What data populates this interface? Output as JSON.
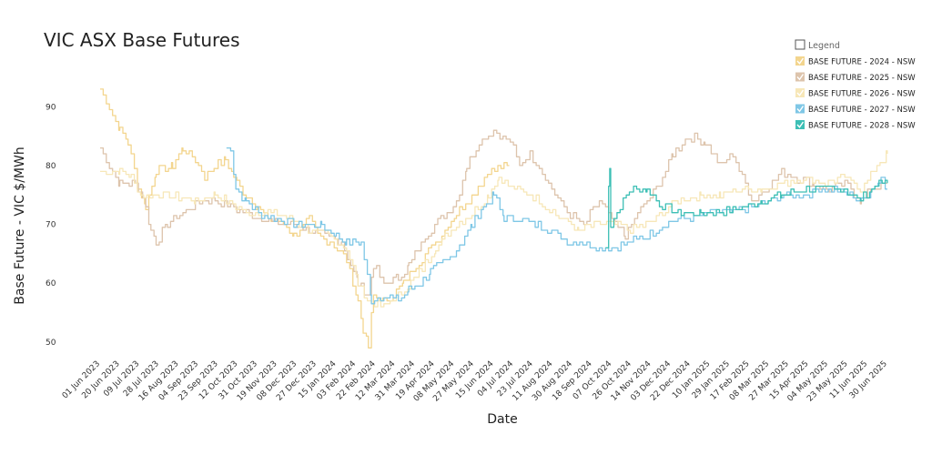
{
  "chart_data": {
    "type": "line",
    "title": "VIC ASX Base Futures",
    "xlabel": "Date",
    "ylabel": "Base Future - VIC $/MWh",
    "ylim": [
      47.5,
      95
    ],
    "yticks": [
      50,
      60,
      70,
      80,
      90
    ],
    "x_start": "2023-06-01",
    "x_end": "2025-07-01",
    "categories": [
      "01 Jun 2023",
      "20 Jun 2023",
      "09 Jul 2023",
      "28 Jul 2023",
      "16 Aug 2023",
      "04 Sep 2023",
      "23 Sep 2023",
      "12 Oct 2023",
      "31 Oct 2023",
      "19 Nov 2023",
      "08 Dec 2023",
      "27 Dec 2023",
      "15 Jan 2024",
      "03 Feb 2024",
      "22 Feb 2024",
      "12 Mar 2024",
      "31 Mar 2024",
      "19 Apr 2024",
      "08 May 2024",
      "27 May 2024",
      "15 Jun 2024",
      "04 Jul 2024",
      "23 Jul 2024",
      "11 Aug 2024",
      "30 Aug 2024",
      "18 Sep 2024",
      "07 Oct 2024",
      "26 Oct 2024",
      "14 Nov 2024",
      "03 Dec 2024",
      "22 Dec 2024",
      "10 Jan 2025",
      "29 Jan 2025",
      "17 Feb 2025",
      "08 Mar 2025",
      "27 Mar 2025",
      "15 Apr 2025",
      "04 May 2025",
      "23 May 2025",
      "11 Jun 2025",
      "30 Jun 2025"
    ],
    "grid": false,
    "legend_position": "top-right",
    "legend_title": "Legend",
    "series": [
      {
        "name": "BASE FUTURE - 2024 - NSW",
        "color": "#f3d58e",
        "end": "2024-06-30",
        "points": [
          [
            "2023-06-01",
            93
          ],
          [
            "2023-06-10",
            90
          ],
          [
            "2023-06-20",
            86
          ],
          [
            "2023-06-28",
            84
          ],
          [
            "2023-07-08",
            76
          ],
          [
            "2023-07-15",
            73
          ],
          [
            "2023-07-25",
            79
          ],
          [
            "2023-08-10",
            80
          ],
          [
            "2023-08-20",
            83
          ],
          [
            "2023-09-01",
            81
          ],
          [
            "2023-09-10",
            78
          ],
          [
            "2023-09-20",
            80
          ],
          [
            "2023-09-30",
            81
          ],
          [
            "2023-10-08",
            78
          ],
          [
            "2023-10-20",
            75
          ],
          [
            "2023-10-31",
            73
          ],
          [
            "2023-11-10",
            71
          ],
          [
            "2023-11-25",
            70
          ],
          [
            "2023-12-05",
            68
          ],
          [
            "2023-12-20",
            71
          ],
          [
            "2023-12-28",
            68
          ],
          [
            "2024-01-10",
            67
          ],
          [
            "2024-01-25",
            64
          ],
          [
            "2024-02-05",
            57
          ],
          [
            "2024-02-10",
            52
          ],
          [
            "2024-02-15",
            49
          ],
          [
            "2024-02-20",
            58
          ],
          [
            "2024-03-01",
            57
          ],
          [
            "2024-03-10",
            58
          ],
          [
            "2024-03-20",
            60
          ],
          [
            "2024-04-01",
            63
          ],
          [
            "2024-04-20",
            67
          ],
          [
            "2024-05-10",
            72
          ],
          [
            "2024-05-25",
            75
          ],
          [
            "2024-06-10",
            79
          ],
          [
            "2024-06-30",
            80
          ]
        ]
      },
      {
        "name": "BASE FUTURE - 2025 - NSW",
        "color": "#ddc4ac",
        "end": "2025-06-30",
        "points": [
          [
            "2023-06-01",
            83
          ],
          [
            "2023-06-10",
            80
          ],
          [
            "2023-06-20",
            77
          ],
          [
            "2023-07-05",
            77
          ],
          [
            "2023-07-12",
            75
          ],
          [
            "2023-07-20",
            69
          ],
          [
            "2023-07-25",
            67
          ],
          [
            "2023-08-05",
            70
          ],
          [
            "2023-08-20",
            72
          ],
          [
            "2023-09-05",
            74
          ],
          [
            "2023-09-20",
            74
          ],
          [
            "2023-10-05",
            73
          ],
          [
            "2023-10-20",
            72
          ],
          [
            "2023-11-05",
            71
          ],
          [
            "2023-11-20",
            70
          ],
          [
            "2023-12-05",
            70
          ],
          [
            "2023-12-20",
            69
          ],
          [
            "2024-01-05",
            68
          ],
          [
            "2024-01-20",
            67
          ],
          [
            "2024-02-05",
            60
          ],
          [
            "2024-02-15",
            58
          ],
          [
            "2024-02-20",
            63
          ],
          [
            "2024-03-01",
            60
          ],
          [
            "2024-03-15",
            61
          ],
          [
            "2024-03-25",
            63
          ],
          [
            "2024-04-10",
            68
          ],
          [
            "2024-04-25",
            71
          ],
          [
            "2024-05-10",
            74
          ],
          [
            "2024-05-20",
            80
          ],
          [
            "2024-06-01",
            84
          ],
          [
            "2024-06-15",
            86
          ],
          [
            "2024-07-01",
            84
          ],
          [
            "2024-07-10",
            80
          ],
          [
            "2024-07-20",
            82
          ],
          [
            "2024-08-01",
            79
          ],
          [
            "2024-08-10",
            76
          ],
          [
            "2024-08-25",
            72
          ],
          [
            "2024-09-10",
            70
          ],
          [
            "2024-09-25",
            74
          ],
          [
            "2024-10-10",
            70
          ],
          [
            "2024-10-20",
            68
          ],
          [
            "2024-11-01",
            72
          ],
          [
            "2024-11-10",
            74
          ],
          [
            "2024-11-25",
            78
          ],
          [
            "2024-12-05",
            82
          ],
          [
            "2024-12-20",
            85
          ],
          [
            "2025-01-05",
            84
          ],
          [
            "2025-01-20",
            80
          ],
          [
            "2025-02-01",
            82
          ],
          [
            "2025-02-10",
            78
          ],
          [
            "2025-02-20",
            74
          ],
          [
            "2025-03-05",
            76
          ],
          [
            "2025-03-20",
            79
          ],
          [
            "2025-04-01",
            78
          ],
          [
            "2025-04-20",
            77
          ],
          [
            "2025-05-05",
            76
          ],
          [
            "2025-05-20",
            77
          ],
          [
            "2025-06-05",
            74
          ],
          [
            "2025-06-15",
            76
          ],
          [
            "2025-06-30",
            77
          ]
        ]
      },
      {
        "name": "BASE FUTURE - 2026 - NSW",
        "color": "#f7e7b8",
        "end": "2025-06-30",
        "points": [
          [
            "2023-06-01",
            79
          ],
          [
            "2023-06-20",
            79
          ],
          [
            "2023-07-01",
            78
          ],
          [
            "2023-07-10",
            75
          ],
          [
            "2023-08-01",
            75
          ],
          [
            "2023-09-01",
            74
          ],
          [
            "2023-09-20",
            75
          ],
          [
            "2023-10-01",
            74
          ],
          [
            "2023-10-20",
            72
          ],
          [
            "2023-11-10",
            72
          ],
          [
            "2023-12-01",
            71
          ],
          [
            "2023-12-20",
            69
          ],
          [
            "2024-01-10",
            68
          ],
          [
            "2024-01-25",
            66
          ],
          [
            "2024-02-05",
            60
          ],
          [
            "2024-02-15",
            57
          ],
          [
            "2024-03-01",
            56
          ],
          [
            "2024-03-15",
            58
          ],
          [
            "2024-04-01",
            61
          ],
          [
            "2024-04-20",
            66
          ],
          [
            "2024-05-10",
            70
          ],
          [
            "2024-05-25",
            72
          ],
          [
            "2024-06-10",
            75
          ],
          [
            "2024-06-20",
            78
          ],
          [
            "2024-07-05",
            76
          ],
          [
            "2024-07-20",
            75
          ],
          [
            "2024-08-05",
            73
          ],
          [
            "2024-08-20",
            71
          ],
          [
            "2024-09-05",
            69
          ],
          [
            "2024-09-20",
            70
          ],
          [
            "2024-10-10",
            70
          ],
          [
            "2024-10-25",
            69
          ],
          [
            "2024-11-10",
            70
          ],
          [
            "2024-11-25",
            72
          ],
          [
            "2024-12-10",
            74
          ],
          [
            "2025-01-01",
            75
          ],
          [
            "2025-01-20",
            75
          ],
          [
            "2025-02-10",
            76
          ],
          [
            "2025-03-01",
            76
          ],
          [
            "2025-03-20",
            77
          ],
          [
            "2025-04-10",
            78
          ],
          [
            "2025-05-01",
            77
          ],
          [
            "2025-05-20",
            78
          ],
          [
            "2025-06-05",
            76
          ],
          [
            "2025-06-20",
            80
          ],
          [
            "2025-06-30",
            82
          ]
        ]
      },
      {
        "name": "BASE FUTURE - 2027 - NSW",
        "color": "#7fc7e6",
        "end": "2025-06-30",
        "points": [
          [
            "2023-10-01",
            83
          ],
          [
            "2023-10-05",
            83
          ],
          [
            "2023-10-10",
            76
          ],
          [
            "2023-10-20",
            74
          ],
          [
            "2023-11-01",
            72
          ],
          [
            "2023-11-20",
            71
          ],
          [
            "2023-12-10",
            70
          ],
          [
            "2024-01-01",
            70
          ],
          [
            "2024-01-15",
            68
          ],
          [
            "2024-01-25",
            67
          ],
          [
            "2024-02-08",
            67
          ],
          [
            "2024-02-18",
            57
          ],
          [
            "2024-03-01",
            58
          ],
          [
            "2024-03-15",
            57
          ],
          [
            "2024-03-25",
            59
          ],
          [
            "2024-04-05",
            60
          ],
          [
            "2024-04-15",
            62
          ],
          [
            "2024-05-01",
            64
          ],
          [
            "2024-05-15",
            67
          ],
          [
            "2024-05-25",
            70
          ],
          [
            "2024-06-05",
            73
          ],
          [
            "2024-06-15",
            75
          ],
          [
            "2024-06-25",
            71
          ],
          [
            "2024-07-10",
            71
          ],
          [
            "2024-07-25",
            70
          ],
          [
            "2024-08-10",
            69
          ],
          [
            "2024-08-25",
            67
          ],
          [
            "2024-09-10",
            67
          ],
          [
            "2024-09-25",
            66
          ],
          [
            "2024-10-10",
            66
          ],
          [
            "2024-10-25",
            67
          ],
          [
            "2024-11-10",
            68
          ],
          [
            "2024-11-25",
            70
          ],
          [
            "2024-12-10",
            71
          ],
          [
            "2024-12-25",
            71
          ],
          [
            "2025-01-10",
            72
          ],
          [
            "2025-02-01",
            72
          ],
          [
            "2025-02-20",
            73
          ],
          [
            "2025-03-10",
            74
          ],
          [
            "2025-03-25",
            75
          ],
          [
            "2025-04-10",
            75
          ],
          [
            "2025-04-25",
            76
          ],
          [
            "2025-05-10",
            76
          ],
          [
            "2025-05-25",
            75
          ],
          [
            "2025-06-05",
            74
          ],
          [
            "2025-06-15",
            76
          ],
          [
            "2025-06-25",
            78
          ],
          [
            "2025-06-30",
            76
          ]
        ]
      },
      {
        "name": "BASE FUTURE - 2028 - NSW",
        "color": "#3dbfb5",
        "end": "2025-06-30",
        "points": [
          [
            "2024-10-01",
            66
          ],
          [
            "2024-10-05",
            80
          ],
          [
            "2024-10-06",
            70
          ],
          [
            "2024-10-15",
            73
          ],
          [
            "2024-10-25",
            76
          ],
          [
            "2024-11-10",
            76
          ],
          [
            "2024-11-25",
            73
          ],
          [
            "2024-12-10",
            72
          ],
          [
            "2025-01-01",
            72
          ],
          [
            "2025-01-20",
            72
          ],
          [
            "2025-02-10",
            73
          ],
          [
            "2025-03-01",
            74
          ],
          [
            "2025-03-20",
            75
          ],
          [
            "2025-04-10",
            76
          ],
          [
            "2025-05-01",
            76
          ],
          [
            "2025-05-20",
            76
          ],
          [
            "2025-06-01",
            74
          ],
          [
            "2025-06-15",
            76
          ],
          [
            "2025-06-22",
            77
          ],
          [
            "2025-06-30",
            77
          ]
        ]
      }
    ]
  }
}
